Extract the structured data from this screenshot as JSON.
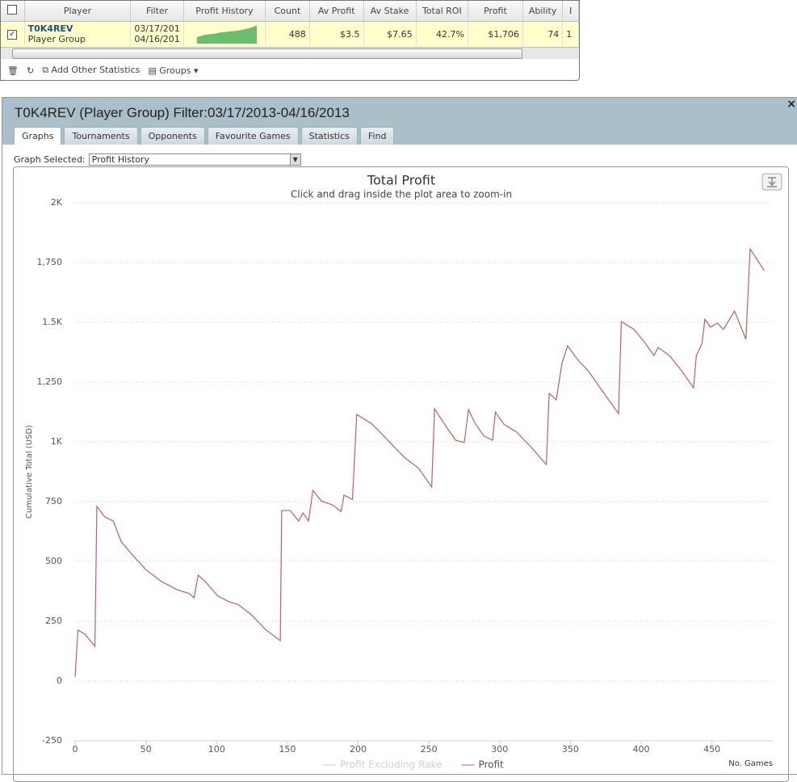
{
  "grid_table": {
    "headers": [
      "Player",
      "Filter",
      "Profit History",
      "Count",
      "Av Profit",
      "Av Stake",
      "Total ROI",
      "Profit",
      "Ability",
      "I"
    ],
    "row": {
      "player": "T0K4REV",
      "group": "Player Group",
      "filter": [
        "03/17/201",
        "04/16/201"
      ],
      "cells": [
        "488",
        "$3.5",
        "$7.65",
        "42.7%",
        "$1,706",
        "74",
        "1"
      ]
    }
  },
  "toolbar": {
    "add_statistics": "Add Other Statistics",
    "groups": "Groups"
  },
  "panel": {
    "title": "T0K4REV (Player Group) Filter:03/17/2013-04/16/2013",
    "close": "×",
    "tabs": [
      "Graphs",
      "Tournaments",
      "Opponents",
      "Favourite Games",
      "Statistics",
      "Find"
    ],
    "graph_selected_label": "Graph Selected:",
    "graph_selected": "Profit History"
  },
  "chart_data": {
    "type": "line",
    "title": "Total Profit",
    "subtitle": "Click and drag inside the plot area to zoom-in",
    "x_label": "No. Games",
    "y_label": "Cumulative Total (USD)",
    "x": [
      0,
      2,
      7,
      14,
      15.4,
      21,
      27,
      32.5,
      41,
      50,
      61,
      72,
      81,
      84,
      87,
      92,
      101,
      109,
      115,
      124,
      135,
      145,
      146,
      152,
      158,
      161,
      165,
      168,
      174,
      182,
      188,
      190,
      196,
      199,
      210,
      221,
      232,
      243,
      252,
      254,
      263,
      269,
      275,
      278,
      283,
      289,
      295,
      297,
      303,
      312,
      323,
      333,
      335,
      340,
      344,
      348,
      355,
      363,
      375,
      384,
      386,
      395,
      403,
      409,
      412,
      420,
      429,
      437,
      439,
      443,
      445,
      449,
      454,
      458,
      466,
      474,
      477,
      487
    ],
    "series": [
      {
        "name": "Profit Excluding Rake",
        "color": "#cccccc",
        "hidden": true
      },
      {
        "name": "Profit",
        "color": "#c06060",
        "values": [
          17,
          213,
          196,
          145,
          730,
          686,
          669,
          584,
          524,
          466,
          416,
          382,
          365,
          348,
          443,
          416,
          355,
          331,
          321,
          280,
          213,
          169,
          713,
          713,
          669,
          703,
          669,
          797,
          753,
          736,
          709,
          777,
          760,
          1115,
          1074,
          1007,
          939,
          888,
          811,
          1139,
          1057,
          1007,
          997,
          1135,
          1074,
          1024,
          1007,
          1125,
          1074,
          1041,
          973,
          905,
          1203,
          1176,
          1328,
          1402,
          1345,
          1294,
          1193,
          1118,
          1503,
          1470,
          1412,
          1361,
          1395,
          1361,
          1294,
          1226,
          1361,
          1412,
          1513,
          1480,
          1497,
          1470,
          1547,
          1429,
          1807,
          1716
        ]
      }
    ],
    "xlim": [
      0,
      493
    ],
    "xticks": [
      0,
      50,
      100,
      150,
      200,
      250,
      300,
      350,
      400,
      450
    ],
    "ylim": [
      -250,
      2000
    ],
    "yticks": [
      -250,
      0,
      250,
      500,
      750,
      {
        "value": 1000,
        "label": "1K"
      },
      {
        "value": 1250,
        "label": "1,250"
      },
      {
        "value": 1500,
        "label": "1.5K"
      },
      {
        "value": 1750,
        "label": "1,750"
      },
      {
        "value": 2000,
        "label": "2K"
      }
    ],
    "grid": true
  }
}
